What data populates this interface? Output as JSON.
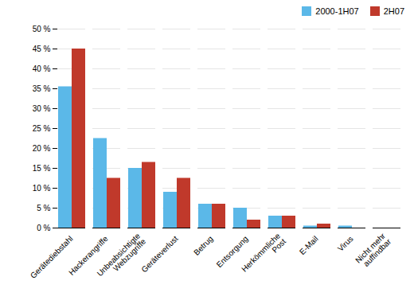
{
  "chart_data": {
    "type": "bar",
    "categories": [
      "Gerätediebstahl",
      "Hackerangriffe",
      "Unbeabsichtigte\nWebzugriffe",
      "Geräteverlust",
      "Betrug",
      "Entsorgung",
      "Herkömmliche\nPost",
      "E-Mail",
      "Virus",
      "Nicht mehr\nauffindbar"
    ],
    "series": [
      {
        "name": "2000-1H07",
        "color": "#5BB8E8",
        "values": [
          35.5,
          22.5,
          15.0,
          9.0,
          6.0,
          5.0,
          3.0,
          0.5,
          0.5,
          0.0
        ]
      },
      {
        "name": "2H07",
        "color": "#C0392B",
        "values": [
          45.0,
          12.5,
          16.5,
          12.5,
          6.0,
          2.0,
          3.0,
          1.0,
          0.0,
          0.0
        ]
      }
    ],
    "ylim": [
      0,
      50
    ],
    "yticks": [
      {
        "value": 0,
        "label": "0 %"
      },
      {
        "value": 5,
        "label": "5 %"
      },
      {
        "value": 10,
        "label": "10 %"
      },
      {
        "value": 15,
        "label": "15 %"
      },
      {
        "value": 20,
        "label": "20 %"
      },
      {
        "value": 25,
        "label": "25 %"
      },
      {
        "value": 30,
        "label": "30 %"
      },
      {
        "value": 35,
        "label": "35 %"
      },
      {
        "value": 40,
        "label": "40 %"
      },
      {
        "value": 45,
        "label": "45 %"
      },
      {
        "value": 50,
        "label": "50 %"
      }
    ],
    "grid": true,
    "legend": "upper right"
  }
}
